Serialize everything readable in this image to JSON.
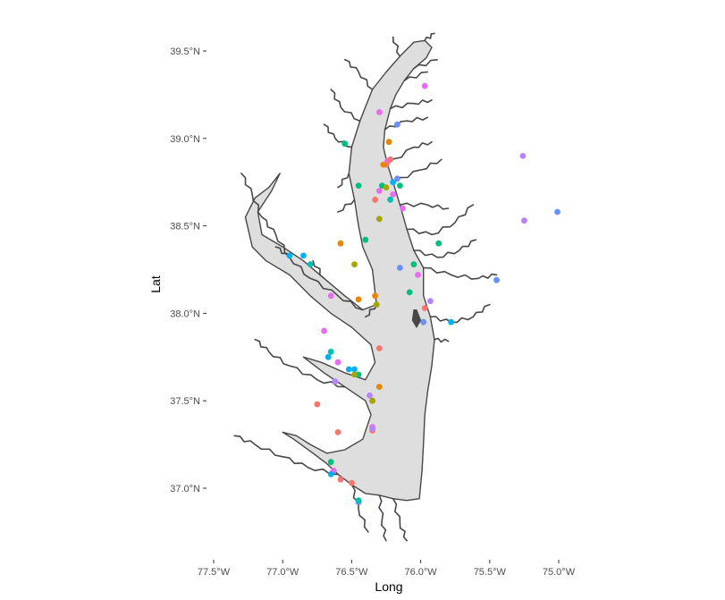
{
  "chart_data": {
    "type": "scatter",
    "subtype": "map",
    "title": "",
    "xlabel": "Long",
    "ylabel": "Lat",
    "xlim": [
      -77.5,
      -75.0
    ],
    "ylim": [
      36.8,
      39.55
    ],
    "x_ticks": [
      {
        "value": -77.5,
        "label": "77.5°W"
      },
      {
        "value": -77.0,
        "label": "77.0°W"
      },
      {
        "value": -76.5,
        "label": "76.5°W"
      },
      {
        "value": -76.0,
        "label": "76.0°W"
      },
      {
        "value": -75.5,
        "label": "75.5°W"
      },
      {
        "value": -75.0,
        "label": "75.0°W"
      }
    ],
    "y_ticks": [
      {
        "value": 39.5,
        "label": "39.5°N"
      },
      {
        "value": 39.0,
        "label": "39.0°N"
      },
      {
        "value": 38.5,
        "label": "38.5°N"
      },
      {
        "value": 38.0,
        "label": "38.0°N"
      },
      {
        "value": 37.5,
        "label": "37.5°N"
      },
      {
        "value": 37.0,
        "label": "37.0°N"
      }
    ],
    "grid": false,
    "legend": "none",
    "background": "#ffffff",
    "land_outline_color": "#474747",
    "water_fill_color": "#dedede",
    "bay_outline": [
      [
        -76.05,
        39.55
      ],
      [
        -75.97,
        39.56
      ],
      [
        -75.92,
        39.52
      ],
      [
        -75.96,
        39.46
      ],
      [
        -76.05,
        39.4
      ],
      [
        -76.12,
        39.33
      ],
      [
        -76.18,
        39.25
      ],
      [
        -76.22,
        39.17
      ],
      [
        -76.26,
        39.05
      ],
      [
        -76.27,
        38.95
      ],
      [
        -76.24,
        38.85
      ],
      [
        -76.2,
        38.75
      ],
      [
        -76.15,
        38.62
      ],
      [
        -76.1,
        38.48
      ],
      [
        -76.05,
        38.36
      ],
      [
        -75.98,
        38.26
      ],
      [
        -75.98,
        38.1
      ],
      [
        -75.93,
        37.98
      ],
      [
        -75.9,
        37.85
      ],
      [
        -75.92,
        37.7
      ],
      [
        -75.95,
        37.55
      ],
      [
        -75.97,
        37.42
      ],
      [
        -75.98,
        37.25
      ],
      [
        -75.99,
        37.1
      ],
      [
        -76.01,
        36.94
      ],
      [
        -76.1,
        36.93
      ],
      [
        -76.2,
        36.94
      ],
      [
        -76.3,
        36.96
      ],
      [
        -76.4,
        36.97
      ],
      [
        -76.5,
        37.02
      ],
      [
        -76.6,
        37.08
      ],
      [
        -76.68,
        37.14
      ],
      [
        -76.78,
        37.2
      ],
      [
        -76.92,
        37.28
      ],
      [
        -77.0,
        37.32
      ],
      [
        -76.9,
        37.3
      ],
      [
        -76.8,
        37.25
      ],
      [
        -76.68,
        37.2
      ],
      [
        -76.55,
        37.22
      ],
      [
        -76.42,
        37.28
      ],
      [
        -76.36,
        37.42
      ],
      [
        -76.4,
        37.5
      ],
      [
        -76.55,
        37.58
      ],
      [
        -76.7,
        37.66
      ],
      [
        -76.85,
        37.75
      ],
      [
        -76.72,
        37.72
      ],
      [
        -76.55,
        37.66
      ],
      [
        -76.4,
        37.62
      ],
      [
        -76.33,
        37.72
      ],
      [
        -76.36,
        37.82
      ],
      [
        -76.5,
        37.92
      ],
      [
        -76.65,
        38.0
      ],
      [
        -76.8,
        38.1
      ],
      [
        -76.95,
        38.22
      ],
      [
        -77.12,
        38.3
      ],
      [
        -77.22,
        38.38
      ],
      [
        -77.27,
        38.55
      ],
      [
        -77.2,
        38.66
      ],
      [
        -77.1,
        38.72
      ],
      [
        -77.02,
        38.8
      ],
      [
        -77.08,
        38.7
      ],
      [
        -77.18,
        38.58
      ],
      [
        -77.15,
        38.45
      ],
      [
        -77.0,
        38.38
      ],
      [
        -76.85,
        38.3
      ],
      [
        -76.7,
        38.2
      ],
      [
        -76.55,
        38.1
      ],
      [
        -76.42,
        38.02
      ],
      [
        -76.32,
        38.05
      ],
      [
        -76.35,
        38.25
      ],
      [
        -76.42,
        38.38
      ],
      [
        -76.45,
        38.5
      ],
      [
        -76.48,
        38.65
      ],
      [
        -76.52,
        38.8
      ],
      [
        -76.5,
        38.95
      ],
      [
        -76.44,
        39.1
      ],
      [
        -76.4,
        39.18
      ],
      [
        -76.35,
        39.28
      ],
      [
        -76.25,
        39.38
      ],
      [
        -76.15,
        39.47
      ],
      [
        -76.05,
        39.55
      ]
    ],
    "tributaries": [
      [
        [
          -76.42,
          38.02
        ],
        [
          -76.6,
          38.1
        ],
        [
          -76.8,
          38.2
        ],
        [
          -76.95,
          38.32
        ],
        [
          -77.05,
          38.38
        ]
      ],
      [
        [
          -76.5,
          38.95
        ],
        [
          -76.62,
          39.0
        ],
        [
          -76.7,
          39.08
        ]
      ],
      [
        [
          -76.44,
          39.1
        ],
        [
          -76.58,
          39.18
        ],
        [
          -76.65,
          39.28
        ]
      ],
      [
        [
          -76.35,
          39.28
        ],
        [
          -76.45,
          39.38
        ],
        [
          -76.55,
          39.45
        ]
      ],
      [
        [
          -76.15,
          39.47
        ],
        [
          -76.2,
          39.58
        ]
      ],
      [
        [
          -75.97,
          39.56
        ],
        [
          -75.9,
          39.6
        ]
      ],
      [
        [
          -76.05,
          39.4
        ],
        [
          -75.88,
          39.45
        ]
      ],
      [
        [
          -76.12,
          39.33
        ],
        [
          -75.95,
          39.38
        ]
      ],
      [
        [
          -76.22,
          39.17
        ],
        [
          -76.05,
          39.2
        ],
        [
          -75.92,
          39.22
        ]
      ],
      [
        [
          -76.26,
          39.05
        ],
        [
          -76.1,
          39.1
        ],
        [
          -75.95,
          39.12
        ]
      ],
      [
        [
          -76.24,
          38.85
        ],
        [
          -76.05,
          38.95
        ],
        [
          -75.92,
          38.98
        ]
      ],
      [
        [
          -76.2,
          38.75
        ],
        [
          -76.0,
          38.82
        ],
        [
          -75.85,
          38.88
        ]
      ],
      [
        [
          -76.15,
          38.62
        ],
        [
          -75.95,
          38.62
        ],
        [
          -75.8,
          38.6
        ]
      ],
      [
        [
          -76.1,
          38.48
        ],
        [
          -75.92,
          38.45
        ],
        [
          -75.75,
          38.52
        ],
        [
          -75.62,
          38.62
        ]
      ],
      [
        [
          -76.05,
          38.36
        ],
        [
          -75.88,
          38.32
        ],
        [
          -75.72,
          38.36
        ],
        [
          -75.6,
          38.42
        ]
      ],
      [
        [
          -75.98,
          38.26
        ],
        [
          -75.78,
          38.22
        ],
        [
          -75.58,
          38.2
        ],
        [
          -75.45,
          38.22
        ]
      ],
      [
        [
          -75.93,
          37.98
        ],
        [
          -75.78,
          37.95
        ],
        [
          -75.62,
          37.98
        ],
        [
          -75.5,
          38.05
        ]
      ],
      [
        [
          -75.9,
          37.85
        ],
        [
          -75.8,
          37.84
        ]
      ],
      [
        [
          -76.55,
          37.58
        ],
        [
          -76.75,
          37.62
        ],
        [
          -76.95,
          37.7
        ],
        [
          -77.1,
          37.78
        ],
        [
          -77.2,
          37.85
        ]
      ],
      [
        [
          -76.6,
          37.08
        ],
        [
          -76.82,
          37.12
        ],
        [
          -77.0,
          37.18
        ],
        [
          -77.2,
          37.25
        ],
        [
          -77.35,
          37.3
        ]
      ],
      [
        [
          -76.5,
          37.02
        ],
        [
          -76.45,
          36.88
        ],
        [
          -76.38,
          36.75
        ]
      ],
      [
        [
          -76.3,
          36.96
        ],
        [
          -76.28,
          36.82
        ],
        [
          -76.25,
          36.7
        ]
      ],
      [
        [
          -76.2,
          36.94
        ],
        [
          -76.15,
          36.8
        ],
        [
          -76.1,
          36.7
        ]
      ],
      [
        [
          -76.95,
          38.32
        ],
        [
          -77.05,
          38.45
        ],
        [
          -77.15,
          38.55
        ],
        [
          -77.22,
          38.68
        ],
        [
          -77.3,
          38.8
        ]
      ],
      [
        [
          -76.7,
          38.2
        ],
        [
          -76.78,
          38.3
        ]
      ],
      [
        [
          -76.32,
          38.05
        ],
        [
          -76.4,
          37.98
        ]
      ],
      [
        [
          -76.52,
          38.8
        ],
        [
          -76.6,
          38.72
        ]
      ],
      [
        [
          -76.48,
          38.65
        ],
        [
          -76.6,
          38.58
        ]
      ]
    ],
    "islands": [
      [
        [
          -76.03,
          38.02
        ],
        [
          -76.0,
          37.96
        ],
        [
          -76.03,
          37.92
        ],
        [
          -76.06,
          37.96
        ],
        [
          -76.05,
          38.02
        ]
      ]
    ],
    "series": [
      {
        "color": "#e76bf3",
        "points": [
          [
            -75.97,
            39.3
          ],
          [
            -76.3,
            39.15
          ],
          [
            -76.24,
            38.87
          ],
          [
            -76.3,
            38.7
          ],
          [
            -76.2,
            38.68
          ],
          [
            -76.13,
            38.6
          ],
          [
            -76.02,
            38.22
          ],
          [
            -76.65,
            38.1
          ],
          [
            -76.6,
            37.72
          ],
          [
            -76.63,
            37.1
          ],
          [
            -76.35,
            37.35
          ],
          [
            -76.7,
            37.9
          ]
        ]
      },
      {
        "color": "#f8766d",
        "points": [
          [
            -76.25,
            38.85
          ],
          [
            -76.22,
            38.88
          ],
          [
            -75.97,
            38.03
          ],
          [
            -76.3,
            37.8
          ],
          [
            -76.75,
            37.48
          ],
          [
            -76.6,
            37.32
          ],
          [
            -76.5,
            37.03
          ],
          [
            -76.58,
            37.05
          ],
          [
            -76.33,
            38.65
          ],
          [
            -76.35,
            37.33
          ]
        ]
      },
      {
        "color": "#00bf7d",
        "points": [
          [
            -76.55,
            38.97
          ],
          [
            -76.45,
            38.73
          ],
          [
            -76.4,
            38.42
          ],
          [
            -76.15,
            38.73
          ],
          [
            -76.05,
            38.28
          ],
          [
            -76.08,
            38.12
          ],
          [
            -75.87,
            38.4
          ],
          [
            -76.45,
            37.65
          ],
          [
            -76.65,
            37.15
          ],
          [
            -76.28,
            38.73
          ]
        ]
      },
      {
        "color": "#00b0f6",
        "points": [
          [
            -76.2,
            38.75
          ],
          [
            -76.95,
            38.33
          ],
          [
            -76.85,
            38.33
          ],
          [
            -75.78,
            37.95
          ],
          [
            -76.67,
            37.75
          ],
          [
            -76.48,
            37.68
          ],
          [
            -76.65,
            37.08
          ],
          [
            -76.52,
            37.68
          ]
        ]
      },
      {
        "color": "#a3a500",
        "points": [
          [
            -76.25,
            38.72
          ],
          [
            -76.3,
            38.54
          ],
          [
            -76.32,
            38.05
          ],
          [
            -76.48,
            38.28
          ],
          [
            -76.35,
            37.5
          ],
          [
            -76.48,
            37.65
          ]
        ]
      },
      {
        "color": "#e58700",
        "points": [
          [
            -76.23,
            38.98
          ],
          [
            -76.27,
            38.85
          ],
          [
            -76.58,
            38.4
          ],
          [
            -76.33,
            38.1
          ],
          [
            -76.3,
            37.58
          ],
          [
            -76.45,
            38.08
          ]
        ]
      },
      {
        "color": "#6b8ef7",
        "points": [
          [
            -76.17,
            39.08
          ],
          [
            -76.17,
            38.77
          ],
          [
            -76.15,
            38.26
          ],
          [
            -75.98,
            37.95
          ],
          [
            -75.45,
            38.19
          ],
          [
            -75.01,
            38.58
          ],
          [
            -76.45,
            36.92
          ]
        ]
      },
      {
        "color": "#b983ff",
        "points": [
          [
            -75.26,
            38.9
          ],
          [
            -75.25,
            38.53
          ],
          [
            -75.93,
            38.07
          ],
          [
            -76.62,
            37.61
          ],
          [
            -76.37,
            37.53
          ],
          [
            -76.35,
            37.34
          ]
        ]
      },
      {
        "color": "#00c0af",
        "points": [
          [
            -76.8,
            38.28
          ],
          [
            -76.65,
            37.78
          ],
          [
            -76.45,
            36.93
          ],
          [
            -76.22,
            38.65
          ]
        ]
      }
    ]
  }
}
